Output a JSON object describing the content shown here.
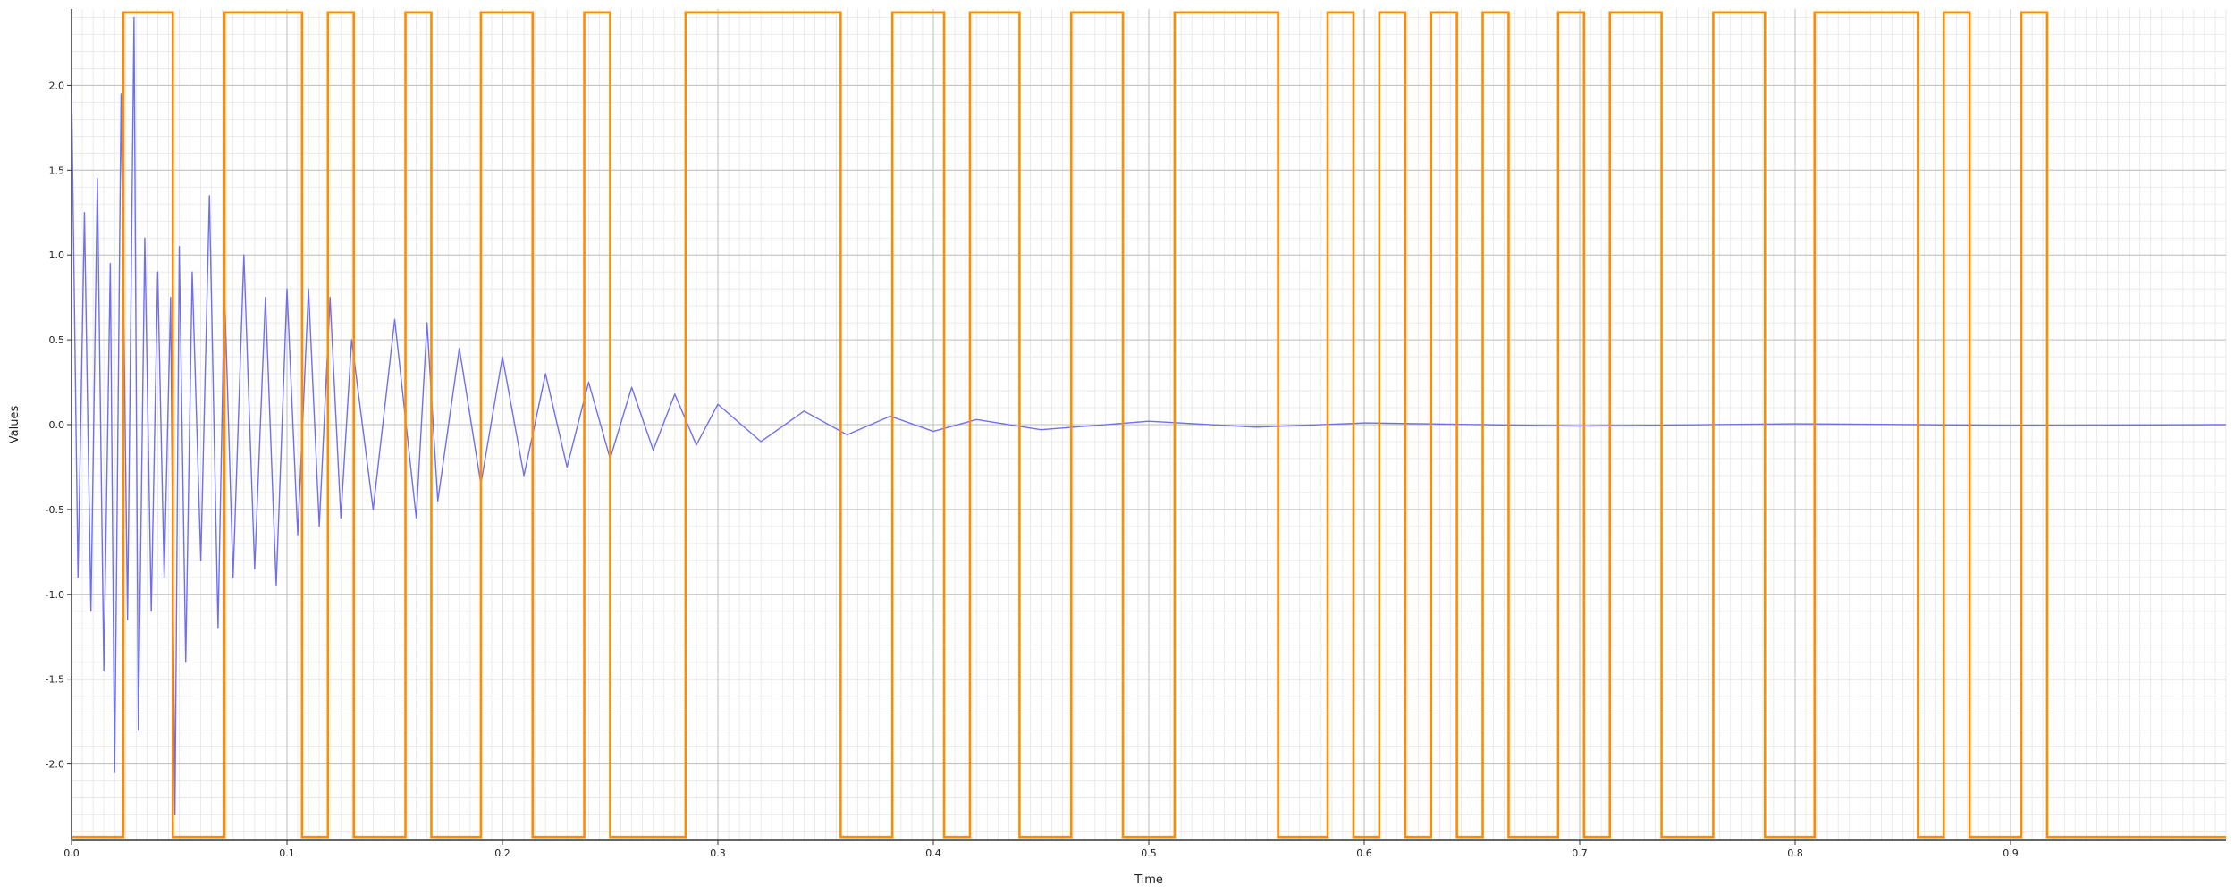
{
  "chart_data": {
    "type": "line",
    "title": "",
    "xlabel": "Time",
    "ylabel": "Values",
    "xlim": [
      0,
      1
    ],
    "ylim": [
      -2.45,
      2.45
    ],
    "x_ticks": [
      0.0,
      0.1,
      0.2,
      0.3,
      0.4,
      0.5,
      0.6,
      0.7,
      0.8,
      0.9
    ],
    "x_tick_labels": [
      "0.0",
      "0.1",
      "0.2",
      "0.3",
      "0.4",
      "0.5",
      "0.6",
      "0.7",
      "0.8",
      "0.9"
    ],
    "y_ticks": [
      2.0,
      1.5,
      1.0,
      0.5,
      0.0,
      -0.5,
      -1.0,
      -1.5,
      -2.0
    ],
    "y_tick_labels": [
      "2.0",
      "1.5",
      "1.0",
      "0.5",
      "0.0",
      "-0.5",
      "-1.0",
      "-1.5",
      "-2.0"
    ],
    "grid": true,
    "minor_grid": true,
    "series": [
      {
        "style": "noisy-damped-signal",
        "color": "#6f6ff0",
        "x": [
          0.0,
          0.003,
          0.006,
          0.009,
          0.012,
          0.015,
          0.018,
          0.02,
          0.023,
          0.026,
          0.029,
          0.031,
          0.034,
          0.037,
          0.04,
          0.043,
          0.046,
          0.048,
          0.05,
          0.053,
          0.056,
          0.06,
          0.064,
          0.068,
          0.071,
          0.075,
          0.08,
          0.085,
          0.09,
          0.095,
          0.1,
          0.105,
          0.11,
          0.115,
          0.12,
          0.125,
          0.13,
          0.14,
          0.15,
          0.16,
          0.165,
          0.17,
          0.18,
          0.19,
          0.2,
          0.21,
          0.22,
          0.23,
          0.24,
          0.25,
          0.26,
          0.27,
          0.28,
          0.29,
          0.3,
          0.32,
          0.34,
          0.36,
          0.38,
          0.4,
          0.42,
          0.45,
          0.5,
          0.55,
          0.6,
          0.7,
          0.8,
          0.9,
          1.0
        ],
        "y": [
          2.0,
          -0.9,
          1.25,
          -1.1,
          1.45,
          -1.45,
          0.95,
          -2.05,
          1.95,
          -1.15,
          2.4,
          -1.8,
          1.1,
          -1.1,
          0.9,
          -0.9,
          0.75,
          -2.3,
          1.05,
          -1.4,
          0.9,
          -0.8,
          1.35,
          -1.2,
          0.8,
          -0.9,
          1.0,
          -0.85,
          0.75,
          -0.95,
          0.8,
          -0.65,
          0.8,
          -0.6,
          0.75,
          -0.55,
          0.5,
          -0.5,
          0.62,
          -0.55,
          0.6,
          -0.45,
          0.45,
          -0.35,
          0.4,
          -0.3,
          0.3,
          -0.25,
          0.25,
          -0.2,
          0.22,
          -0.15,
          0.18,
          -0.12,
          0.12,
          -0.1,
          0.08,
          -0.06,
          0.05,
          -0.04,
          0.03,
          -0.03,
          0.02,
          -0.015,
          0.01,
          -0.008,
          0.005,
          -0.004,
          0.0
        ]
      },
      {
        "style": "square-wave",
        "color": "#ff8c00",
        "low": -2.43,
        "high": 2.43,
        "high_intervals": [
          [
            0.024,
            0.047
          ],
          [
            0.071,
            0.107
          ],
          [
            0.119,
            0.131
          ],
          [
            0.155,
            0.167
          ],
          [
            0.19,
            0.214
          ],
          [
            0.238,
            0.25
          ],
          [
            0.285,
            0.357
          ],
          [
            0.381,
            0.405
          ],
          [
            0.417,
            0.44
          ],
          [
            0.464,
            0.488
          ],
          [
            0.512,
            0.56
          ],
          [
            0.583,
            0.595
          ],
          [
            0.607,
            0.619
          ],
          [
            0.631,
            0.643
          ],
          [
            0.655,
            0.667
          ],
          [
            0.69,
            0.702
          ],
          [
            0.714,
            0.738
          ],
          [
            0.762,
            0.786
          ],
          [
            0.809,
            0.857
          ],
          [
            0.869,
            0.881
          ],
          [
            0.905,
            0.917
          ]
        ]
      }
    ]
  }
}
